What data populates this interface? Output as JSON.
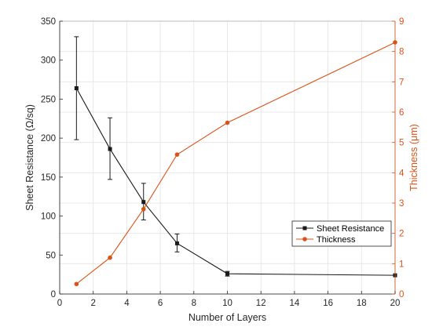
{
  "chart_data": {
    "type": "line",
    "xlabel": "Number of Layers",
    "ylabel_left": "Sheet Resistance (Ω/sq)",
    "ylabel_right": "Thickness (μm)",
    "xlim": [
      0,
      20
    ],
    "ylim_left": [
      0,
      350
    ],
    "ylim_right": [
      0,
      9
    ],
    "xticks": [
      0,
      2,
      4,
      6,
      8,
      10,
      12,
      14,
      16,
      18,
      20
    ],
    "yticks_left": [
      0,
      50,
      100,
      150,
      200,
      250,
      300,
      350
    ],
    "yticks_right": [
      0,
      1,
      2,
      3,
      4,
      5,
      6,
      7,
      8,
      9
    ],
    "grid": true,
    "legend_position": "bottom-right",
    "series": [
      {
        "name": "Sheet Resistance",
        "axis": "left",
        "color": "#1a1a1a",
        "marker": "square",
        "x": [
          1,
          3,
          5,
          7,
          10,
          20
        ],
        "y": [
          264,
          186,
          118,
          65,
          26,
          24
        ],
        "error_low": [
          198,
          147,
          95,
          54,
          23,
          24
        ],
        "error_high": [
          330,
          226,
          142,
          77,
          29,
          24
        ]
      },
      {
        "name": "Thickness",
        "axis": "right",
        "color": "#d95319",
        "marker": "circle",
        "x": [
          1,
          3,
          5,
          7,
          10,
          20
        ],
        "y": [
          0.33,
          1.2,
          2.8,
          4.6,
          5.65,
          8.3
        ]
      }
    ]
  }
}
